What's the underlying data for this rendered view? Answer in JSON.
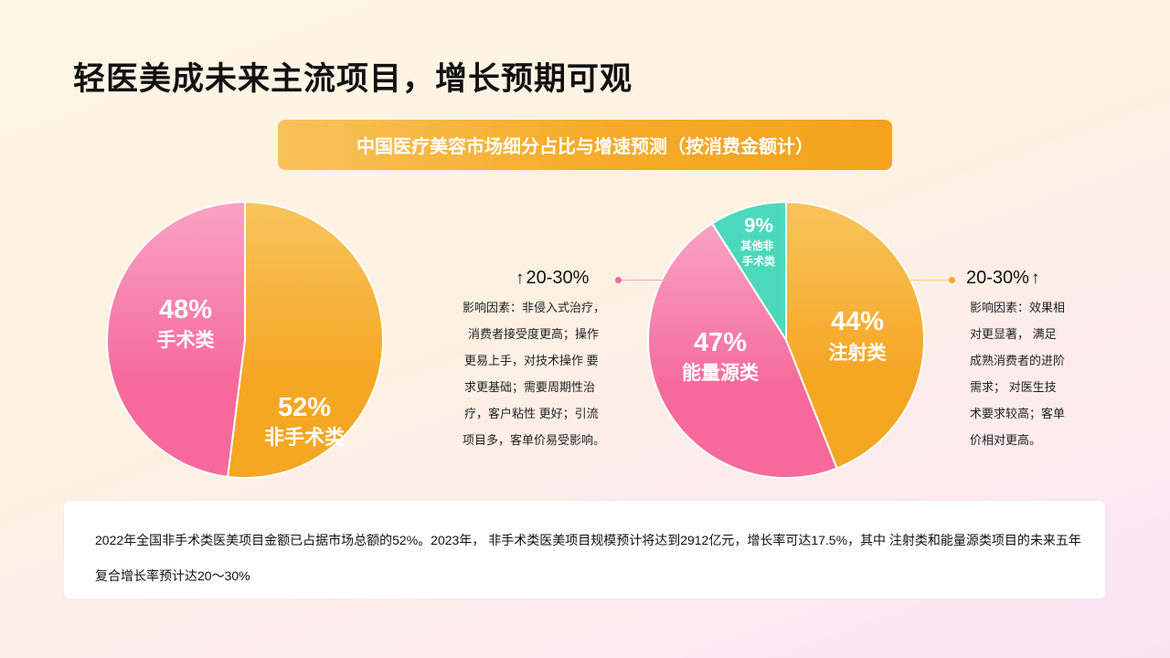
{
  "page": {
    "title": "轻医美成未来主流项目，增长预期可观"
  },
  "banner": {
    "text": "中国医疗美容市场细分占比与增速预测（按消费金额计）"
  },
  "chart_data": [
    {
      "type": "pie",
      "slices": [
        {
          "label": "非手术类",
          "value": 52,
          "value_label": "52%",
          "color": "#f5a623",
          "color_light": "#f8c45c"
        },
        {
          "label": "手术类",
          "value": 48,
          "value_label": "48%",
          "color": "#f56a9a",
          "color_light": "#f9a3c2"
        }
      ]
    },
    {
      "type": "pie",
      "slices": [
        {
          "label": "注射类",
          "value": 44,
          "value_label": "44%",
          "color": "#f5a623",
          "color_light": "#f8c45c"
        },
        {
          "label": "能量源类",
          "value": 47,
          "value_label": "47%",
          "color": "#f56a9a",
          "color_light": "#f9a3c2"
        },
        {
          "label": "其他非手术类",
          "value": 9,
          "value_label": "9%",
          "color": "#4cd9bb",
          "color_light": "#4cd9bb"
        }
      ]
    }
  ],
  "annotations": {
    "left": {
      "arrow": "↑",
      "growth": "20-30%",
      "color": "#f06a9f",
      "lines": [
        "影响因素：非侵入式治疗，",
        "消费者接受度更高；操作",
        "更易上手，对技术操作 要",
        "求更基础；需要周期性治",
        "疗，客户粘性 更好；引流",
        "项目多，客单价易受影响。"
      ]
    },
    "right": {
      "arrow": "↑",
      "growth": "20-30%",
      "color": "#f5a623",
      "lines": [
        "影响因素：效果相",
        "对更显著， 满足",
        "成熟消费者的进阶",
        "需求； 对医生技",
        "术要求较高；客单",
        "价相对更高。"
      ]
    }
  },
  "summary": {
    "text": "2022年全国非手术类医美项目金额已占据市场总额的52%。2023年，   非手术类医美项目规模预计将达到2912亿元，增长率可达17.5%，其中  注射类和能量源类项目的未来五年复合增长率预计达20～30%"
  }
}
